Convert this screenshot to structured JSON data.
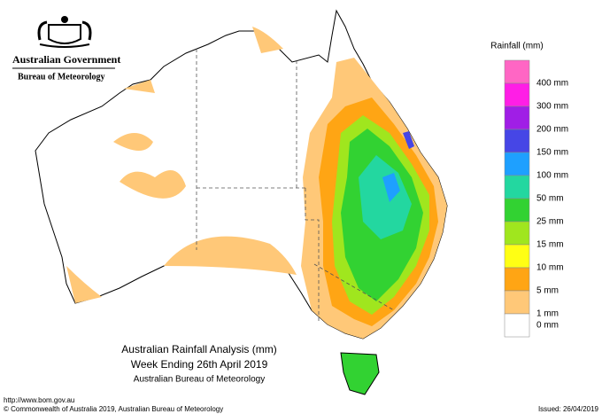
{
  "header": {
    "government": "Australian Government",
    "agency": "Bureau of Meteorology"
  },
  "legend": {
    "title": "Rainfall (mm)",
    "colors": [
      "#ff66c4",
      "#ff1ee6",
      "#a01ee6",
      "#4646e6",
      "#1ea0ff",
      "#23d7a0",
      "#32d232",
      "#a0e61e",
      "#ffff14",
      "#ffa514",
      "#ffc878",
      "#ffffff"
    ],
    "labels": [
      "400 mm",
      "300 mm",
      "200 mm",
      "150 mm",
      "100 mm",
      "50 mm",
      "25 mm",
      "15 mm",
      "10 mm",
      "5 mm",
      "1 mm",
      "0 mm"
    ]
  },
  "caption": {
    "title": "Australian Rainfall Analysis (mm)",
    "period": "Week Ending 26th April 2019",
    "source": "Australian Bureau of Meteorology"
  },
  "footer": {
    "url": "http://www.bom.gov.au",
    "copyright": "© Commonwealth of Australia 2019, Australian Bureau of Meteorology",
    "issued": "Issued: 26/04/2019"
  }
}
